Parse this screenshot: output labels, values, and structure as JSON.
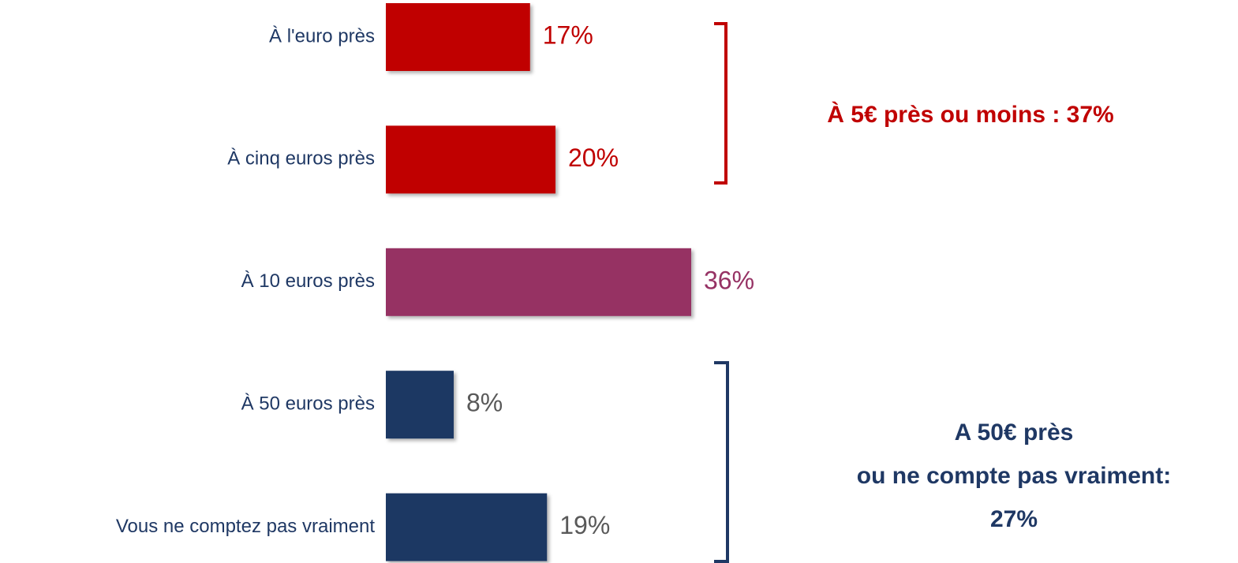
{
  "chart_data": {
    "type": "bar",
    "orientation": "horizontal",
    "categories": [
      "À l'euro près",
      "À cinq euros près",
      "À 10 euros près",
      "À 50 euros près",
      "Vous ne comptez pas vraiment"
    ],
    "values": [
      17,
      20,
      36,
      8,
      19
    ],
    "value_labels": [
      "17%",
      "20%",
      "36%",
      "8%",
      "19%"
    ],
    "colors": [
      "#c00000",
      "#c00000",
      "#963264",
      "#1f3864",
      "#1f3864"
    ],
    "label_colors": [
      "#c00000",
      "#c00000",
      "#963264",
      "#595959",
      "#595959"
    ],
    "annotations": [
      {
        "lines": [
          "À 5€ près ou moins : 37%"
        ],
        "color": "#c00000"
      },
      {
        "lines": [
          "A 50€ près",
          "ou ne compte pas vraiment:",
          "27%"
        ],
        "color": "#1f3864"
      }
    ]
  }
}
